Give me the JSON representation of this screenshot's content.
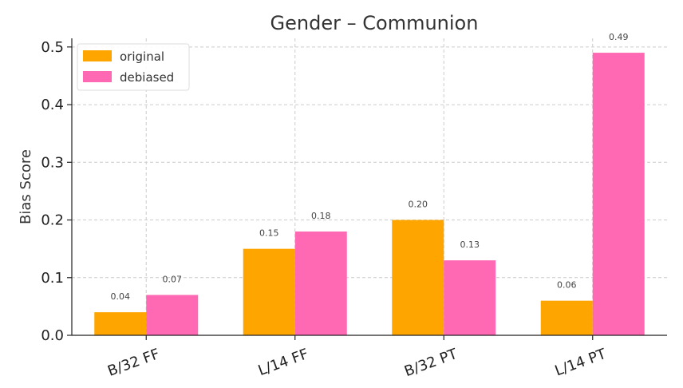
{
  "chart_data": {
    "type": "bar",
    "title": "Gender – Communion",
    "xlabel": "",
    "ylabel": "Bias Score",
    "categories": [
      "B/32 FF",
      "L/14 FF",
      "B/32 PT",
      "L/14 PT"
    ],
    "series": [
      {
        "name": "original",
        "color": "#FFA500",
        "values": [
          0.04,
          0.15,
          0.2,
          0.06
        ]
      },
      {
        "name": "debiased",
        "color": "#FF69B4",
        "values": [
          0.07,
          0.18,
          0.13,
          0.49
        ]
      }
    ],
    "data_labels": [
      [
        "0.04",
        "0.15",
        "0.20",
        "0.06"
      ],
      [
        "0.07",
        "0.18",
        "0.13",
        "0.49"
      ]
    ],
    "ylim": [
      0,
      0.515
    ],
    "yticks": [
      0.0,
      0.1,
      0.2,
      0.3,
      0.4,
      0.5
    ],
    "ytick_labels": [
      "0.0",
      "0.1",
      "0.2",
      "0.3",
      "0.4",
      "0.5"
    ],
    "grid": true,
    "legend_position": "top-left"
  }
}
